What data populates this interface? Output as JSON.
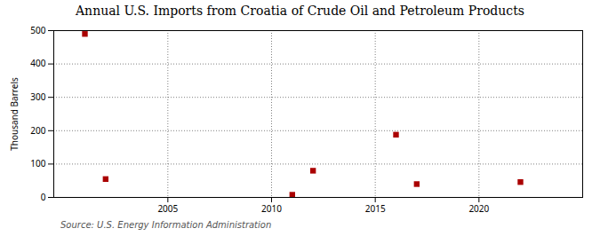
{
  "chart_data": {
    "type": "scatter",
    "title": "Annual U.S. Imports from Croatia of Crude Oil and Petroleum Products",
    "ylabel": "Thousand Barrels",
    "source": "Source: U.S. Energy Information Administration",
    "x": [
      2001,
      2002,
      2011,
      2012,
      2016,
      2017,
      2022
    ],
    "values": [
      490,
      55,
      8,
      80,
      188,
      40,
      46
    ],
    "color": "#AA0000",
    "marker": "square",
    "xlim": [
      1999.5,
      2025
    ],
    "xticks": [
      2005,
      2010,
      2015,
      2020
    ],
    "ylim": [
      0,
      500
    ],
    "yticks": [
      0,
      100,
      200,
      300,
      400,
      500
    ],
    "grid": true
  }
}
